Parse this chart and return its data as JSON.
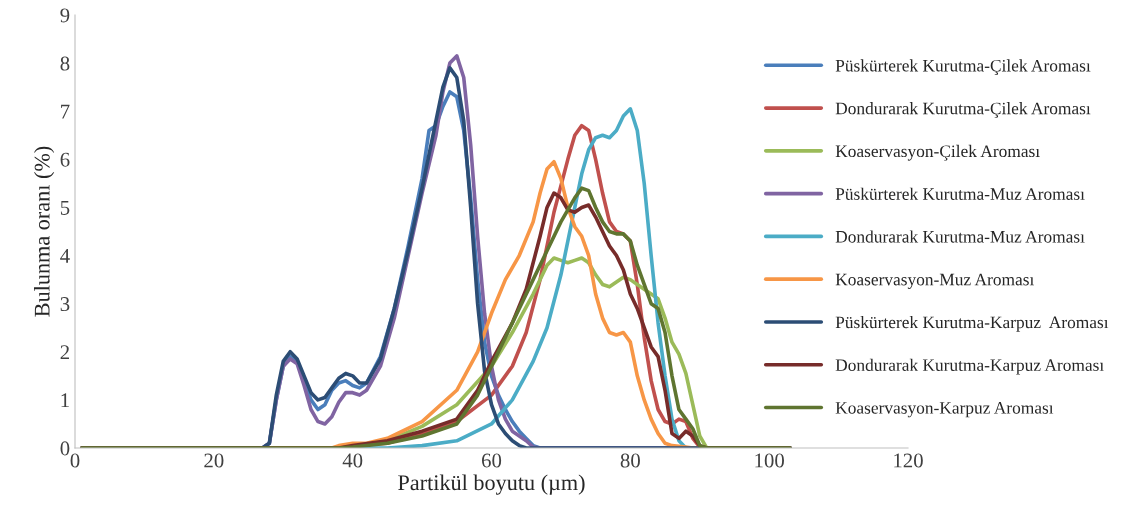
{
  "chart_data": {
    "type": "line",
    "xlabel": "Partikül boyutu (µm)",
    "ylabel": "Bulunma oranı (%)",
    "xlim": [
      0,
      120
    ],
    "xticks": [
      0,
      20,
      40,
      60,
      80,
      100,
      120
    ],
    "ylim": [
      0,
      9
    ],
    "yticks": [
      0,
      1,
      2,
      3,
      4,
      5,
      6,
      7,
      8,
      9
    ],
    "grid": false,
    "legend": "right",
    "marker": "none",
    "line_style": "solid",
    "series": [
      {
        "name": "Püskürterek Kurutma-Çilek Aroması",
        "color": "#4a7ebb",
        "x": [
          1,
          27,
          28,
          29,
          30,
          31,
          32,
          33,
          34,
          35,
          36,
          37,
          38,
          39,
          40,
          41,
          42,
          44,
          46,
          48,
          50,
          51,
          52,
          53,
          54,
          55,
          56,
          57,
          58,
          59,
          60,
          61,
          62,
          63,
          64,
          65,
          66,
          67,
          103
        ],
        "values": [
          0,
          0,
          0.1,
          1.0,
          1.7,
          1.9,
          1.8,
          1.4,
          1.0,
          0.8,
          0.9,
          1.2,
          1.35,
          1.4,
          1.3,
          1.25,
          1.35,
          1.9,
          2.9,
          4.2,
          5.6,
          6.6,
          6.7,
          7.1,
          7.4,
          7.3,
          6.6,
          5.2,
          3.5,
          2.2,
          1.5,
          1.1,
          0.8,
          0.55,
          0.35,
          0.2,
          0.05,
          0,
          0
        ]
      },
      {
        "name": "Dondurarak Kurutma-Çilek Aroması",
        "color": "#c0504d",
        "x": [
          1,
          38,
          40,
          45,
          50,
          55,
          60,
          63,
          65,
          67,
          69,
          71,
          72,
          73,
          74,
          75,
          76,
          77,
          78,
          79,
          80,
          81,
          82,
          83,
          84,
          85,
          86,
          87,
          88,
          89,
          90,
          91,
          103
        ],
        "values": [
          0,
          0,
          0.05,
          0.1,
          0.3,
          0.55,
          1.1,
          1.7,
          2.4,
          3.5,
          4.9,
          6.0,
          6.5,
          6.7,
          6.6,
          6.0,
          5.3,
          4.7,
          4.5,
          4.45,
          4.3,
          3.4,
          2.3,
          1.4,
          0.8,
          0.55,
          0.5,
          0.6,
          0.55,
          0.2,
          0.02,
          0,
          0
        ]
      },
      {
        "name": "Koaservasyon-Çilek Aroması",
        "color": "#9bbb59",
        "x": [
          1,
          38,
          40,
          45,
          50,
          55,
          60,
          63,
          66,
          68,
          69,
          70,
          71,
          72,
          73,
          74,
          75,
          76,
          77,
          78,
          79,
          80,
          81,
          82,
          83,
          84,
          85,
          86,
          87,
          88,
          89,
          90,
          91,
          103
        ],
        "values": [
          0,
          0,
          0.02,
          0.15,
          0.45,
          0.9,
          1.7,
          2.4,
          3.2,
          3.8,
          3.95,
          3.9,
          3.85,
          3.9,
          3.95,
          3.85,
          3.6,
          3.4,
          3.35,
          3.45,
          3.55,
          3.5,
          3.4,
          3.3,
          3.2,
          3.1,
          2.7,
          2.2,
          1.95,
          1.55,
          0.9,
          0.25,
          0,
          0
        ]
      },
      {
        "name": "Püskürterek Kurutma-Muz Aroması",
        "color": "#8064a2",
        "x": [
          1,
          27,
          28,
          29,
          30,
          31,
          32,
          33,
          34,
          35,
          36,
          37,
          38,
          39,
          40,
          41,
          42,
          44,
          46,
          48,
          50,
          52,
          53,
          54,
          55,
          56,
          57,
          58,
          59,
          60,
          61,
          62,
          63,
          64,
          65,
          66,
          67,
          103
        ],
        "values": [
          0,
          0,
          0.1,
          1.0,
          1.7,
          1.85,
          1.75,
          1.3,
          0.8,
          0.55,
          0.5,
          0.65,
          0.95,
          1.15,
          1.15,
          1.1,
          1.2,
          1.7,
          2.7,
          4.0,
          5.3,
          6.5,
          7.4,
          8.0,
          8.15,
          7.7,
          6.3,
          4.4,
          2.8,
          1.7,
          1.0,
          0.6,
          0.35,
          0.25,
          0.15,
          0.02,
          0,
          0
        ]
      },
      {
        "name": "Dondurarak Kurutma-Muz Aroması",
        "color": "#4bacc6",
        "x": [
          1,
          45,
          50,
          55,
          60,
          63,
          66,
          68,
          70,
          72,
          73,
          74,
          75,
          76,
          77,
          78,
          79,
          80,
          81,
          82,
          83,
          84,
          85,
          86,
          87,
          88,
          103
        ],
        "values": [
          0,
          0,
          0.05,
          0.15,
          0.5,
          1.0,
          1.8,
          2.5,
          3.6,
          5.0,
          5.7,
          6.2,
          6.45,
          6.5,
          6.45,
          6.6,
          6.9,
          7.05,
          6.6,
          5.5,
          4.0,
          2.6,
          1.5,
          0.6,
          0.15,
          0,
          0
        ]
      },
      {
        "name": "Koaservasyon-Muz Aroması",
        "color": "#f79646",
        "x": [
          1,
          37,
          38,
          40,
          42,
          45,
          50,
          55,
          58,
          60,
          62,
          64,
          66,
          67,
          68,
          69,
          70,
          71,
          72,
          73,
          74,
          75,
          76,
          77,
          78,
          79,
          80,
          81,
          82,
          83,
          84,
          85,
          86,
          88,
          89,
          103
        ],
        "values": [
          0,
          0,
          0.05,
          0.1,
          0.1,
          0.2,
          0.55,
          1.2,
          2.0,
          2.8,
          3.5,
          4.0,
          4.7,
          5.3,
          5.8,
          5.95,
          5.6,
          5.0,
          4.6,
          4.4,
          4.0,
          3.2,
          2.7,
          2.4,
          2.35,
          2.4,
          2.2,
          1.5,
          1.0,
          0.6,
          0.3,
          0.1,
          0.05,
          0.02,
          0,
          0
        ]
      },
      {
        "name": "Püskürterek Kurutma-Karpuz  Aroması",
        "color": "#2c4d75",
        "x": [
          1,
          27,
          28,
          29,
          30,
          31,
          32,
          33,
          34,
          35,
          36,
          37,
          38,
          39,
          40,
          41,
          42,
          44,
          46,
          48,
          50,
          52,
          53,
          54,
          55,
          56,
          57,
          58,
          59,
          60,
          61,
          62,
          63,
          64,
          65,
          103
        ],
        "values": [
          0,
          0,
          0.1,
          1.1,
          1.8,
          2.0,
          1.85,
          1.5,
          1.15,
          1.0,
          1.05,
          1.25,
          1.45,
          1.55,
          1.5,
          1.35,
          1.35,
          1.85,
          2.9,
          4.1,
          5.4,
          6.8,
          7.5,
          7.9,
          7.7,
          6.8,
          5.0,
          3.0,
          1.6,
          0.9,
          0.5,
          0.3,
          0.15,
          0.05,
          0,
          0
        ]
      },
      {
        "name": "Dondurarak Kurutma-Karpuz Aroması",
        "color": "#772c2a",
        "x": [
          1,
          38,
          40,
          45,
          50,
          55,
          58,
          60,
          63,
          65,
          67,
          68,
          69,
          70,
          71,
          72,
          73,
          74,
          75,
          76,
          77,
          78,
          79,
          80,
          81,
          82,
          83,
          84,
          85,
          86,
          87,
          88,
          89,
          90,
          91,
          103
        ],
        "values": [
          0,
          0,
          0.05,
          0.15,
          0.35,
          0.6,
          1.2,
          1.8,
          2.6,
          3.3,
          4.4,
          5.0,
          5.3,
          5.2,
          4.95,
          4.9,
          5.0,
          5.05,
          4.8,
          4.5,
          4.2,
          4.0,
          3.7,
          3.2,
          2.9,
          2.5,
          2.1,
          1.9,
          1.2,
          0.3,
          0.2,
          0.35,
          0.25,
          0.05,
          0,
          0
        ]
      },
      {
        "name": "Koaservasyon-Karpuz Aroması",
        "color": "#5f7530",
        "x": [
          1,
          38,
          40,
          45,
          50,
          55,
          58,
          60,
          63,
          66,
          68,
          70,
          72,
          73,
          74,
          75,
          76,
          77,
          78,
          79,
          80,
          81,
          82,
          83,
          84,
          85,
          86,
          87,
          88,
          89,
          90,
          91,
          103
        ],
        "values": [
          0,
          0,
          0.02,
          0.1,
          0.25,
          0.5,
          1.1,
          1.7,
          2.6,
          3.5,
          4.1,
          4.7,
          5.2,
          5.4,
          5.35,
          5.0,
          4.7,
          4.5,
          4.45,
          4.45,
          4.3,
          3.8,
          3.4,
          3.0,
          2.9,
          2.4,
          1.5,
          0.8,
          0.6,
          0.4,
          0.05,
          0,
          0
        ]
      }
    ]
  }
}
